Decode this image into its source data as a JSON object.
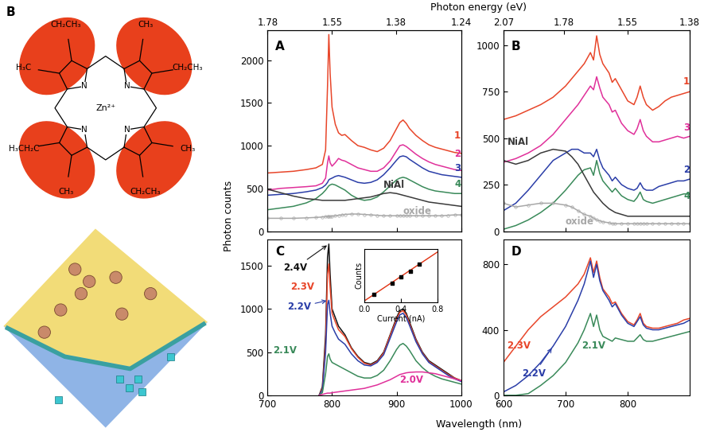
{
  "shared": {
    "xlabel": "Wavelength (nm)",
    "ylabel": "Photon counts",
    "x2label": "Photon energy (eV)"
  },
  "molecule": {
    "panel_label": "B",
    "metal": "Zn²⁺",
    "nitrogens": [
      "N",
      "N",
      "N",
      "N"
    ],
    "substituents": [
      "CH₂CH₃",
      "H₃C",
      "CH₂CH₃",
      "CH₃",
      "H₃CH₂C",
      "CH₃",
      "CH₂CH₃",
      "CH₃"
    ]
  },
  "chart_data": [
    {
      "type": "line",
      "title": "A",
      "x": [
        700,
        720,
        740,
        760,
        775,
        785,
        790,
        793,
        795,
        797,
        800,
        805,
        810,
        815,
        820,
        830,
        840,
        850,
        860,
        870,
        880,
        890,
        900,
        905,
        910,
        915,
        920,
        930,
        940,
        950,
        960,
        970,
        980,
        990,
        1000
      ],
      "xlim": [
        700,
        1000
      ],
      "xticks": [
        700,
        800,
        900,
        1000
      ],
      "x2ticks": [
        {
          "value": 700,
          "label": "1.78"
        },
        {
          "value": 800,
          "label": "1.55"
        },
        {
          "value": 899,
          "label": "1.38"
        },
        {
          "value": 1000,
          "label": "1.24"
        }
      ],
      "ylim": [
        0,
        2350
      ],
      "yticks": [
        0,
        500,
        1000,
        1500,
        2000
      ],
      "tick_labels": "y",
      "series": [
        {
          "name": "1",
          "color": "#e8462a",
          "values": [
            680,
            690,
            700,
            720,
            740,
            780,
            950,
            1700,
            2300,
            1850,
            1450,
            1250,
            1150,
            1120,
            1130,
            1060,
            1000,
            980,
            950,
            930,
            970,
            1060,
            1200,
            1270,
            1300,
            1260,
            1200,
            1120,
            1060,
            1010,
            980,
            960,
            940,
            920,
            910
          ]
        },
        {
          "name": "2",
          "color": "#e0309a",
          "values": [
            480,
            500,
            510,
            520,
            530,
            560,
            620,
            800,
            880,
            800,
            760,
            800,
            850,
            830,
            820,
            780,
            740,
            720,
            700,
            700,
            740,
            820,
            940,
            1000,
            1010,
            990,
            960,
            900,
            850,
            810,
            780,
            760,
            740,
            720,
            710
          ]
        },
        {
          "name": "3",
          "color": "#2b3ea8",
          "values": [
            420,
            430,
            440,
            460,
            480,
            510,
            540,
            570,
            600,
            610,
            620,
            640,
            650,
            640,
            630,
            600,
            570,
            560,
            570,
            600,
            660,
            740,
            830,
            870,
            880,
            870,
            840,
            790,
            740,
            700,
            680,
            660,
            650,
            640,
            630
          ]
        },
        {
          "name": "4",
          "color": "#3a8a5a",
          "values": [
            250,
            270,
            290,
            330,
            380,
            440,
            480,
            510,
            530,
            540,
            550,
            540,
            520,
            500,
            480,
            420,
            380,
            360,
            370,
            400,
            460,
            530,
            600,
            620,
            630,
            620,
            600,
            560,
            520,
            490,
            470,
            460,
            450,
            440,
            440
          ]
        },
        {
          "name": "NiAl",
          "color": "#3a3a3a",
          "values": [
            490,
            450,
            410,
            380,
            370,
            360,
            360,
            360,
            360,
            360,
            360,
            360,
            360,
            360,
            360,
            370,
            380,
            390,
            400,
            420,
            440,
            450,
            440,
            430,
            420,
            410,
            400,
            380,
            360,
            340,
            330,
            320,
            310,
            300,
            290
          ]
        },
        {
          "name": "oxide",
          "color": "#a8a8a8",
          "marker": "o",
          "values": [
            150,
            150,
            150,
            155,
            160,
            165,
            170,
            170,
            170,
            170,
            175,
            180,
            185,
            190,
            195,
            200,
            200,
            195,
            190,
            185,
            180,
            180,
            180,
            180,
            180,
            180,
            180,
            180,
            180,
            180,
            180,
            180,
            185,
            190,
            190
          ]
        }
      ]
    },
    {
      "type": "line",
      "title": "B",
      "x": [
        600,
        620,
        640,
        660,
        680,
        700,
        710,
        720,
        730,
        740,
        745,
        750,
        755,
        760,
        770,
        775,
        780,
        790,
        800,
        810,
        815,
        820,
        825,
        830,
        840,
        850,
        860,
        870,
        880,
        890,
        900
      ],
      "xlim": [
        600,
        900
      ],
      "xticks": [
        600,
        700,
        800
      ],
      "x2ticks": [
        {
          "value": 600,
          "label": "2.07"
        },
        {
          "value": 697,
          "label": "1.78"
        },
        {
          "value": 800,
          "label": "1.55"
        },
        {
          "value": 899,
          "label": "1.38"
        }
      ],
      "ylim": [
        0,
        1080
      ],
      "yticks": [
        0,
        250,
        500,
        750,
        1000
      ],
      "tick_labels": "y",
      "series": [
        {
          "name": "1",
          "color": "#e8462a",
          "values": [
            600,
            620,
            650,
            680,
            720,
            780,
            820,
            860,
            900,
            960,
            920,
            1050,
            950,
            900,
            850,
            800,
            820,
            760,
            700,
            680,
            720,
            780,
            720,
            680,
            650,
            670,
            700,
            720,
            730,
            740,
            750
          ]
        },
        {
          "name": "3",
          "color": "#e0309a",
          "values": [
            370,
            390,
            420,
            460,
            520,
            600,
            640,
            680,
            730,
            780,
            760,
            830,
            770,
            720,
            680,
            640,
            650,
            580,
            540,
            520,
            550,
            600,
            540,
            510,
            480,
            480,
            490,
            500,
            510,
            500,
            510
          ]
        },
        {
          "name": "2",
          "color": "#2b3ea8",
          "values": [
            110,
            150,
            220,
            300,
            380,
            420,
            440,
            440,
            420,
            420,
            400,
            440,
            380,
            340,
            300,
            270,
            290,
            250,
            230,
            220,
            230,
            260,
            230,
            220,
            220,
            240,
            250,
            260,
            270,
            270,
            280
          ]
        },
        {
          "name": "4",
          "color": "#3a8a5a",
          "values": [
            10,
            30,
            60,
            100,
            150,
            220,
            260,
            300,
            330,
            340,
            300,
            380,
            310,
            270,
            230,
            210,
            230,
            190,
            170,
            160,
            180,
            210,
            170,
            160,
            150,
            160,
            170,
            180,
            190,
            200,
            200
          ]
        },
        {
          "name": "NiAl",
          "color": "#3a3a3a",
          "values": [
            380,
            360,
            380,
            420,
            440,
            430,
            400,
            360,
            300,
            240,
            210,
            190,
            170,
            150,
            120,
            110,
            100,
            90,
            80,
            80,
            80,
            80,
            80,
            80,
            80,
            80,
            80,
            80,
            80,
            80,
            80
          ]
        },
        {
          "name": "oxide",
          "color": "#a8a8a8",
          "marker": "o",
          "values": [
            150,
            130,
            140,
            150,
            150,
            140,
            130,
            110,
            90,
            80,
            70,
            60,
            55,
            50,
            45,
            40,
            40,
            40,
            40,
            40,
            40,
            40,
            40,
            40,
            40,
            40,
            40,
            40,
            40,
            40,
            40
          ]
        }
      ]
    },
    {
      "type": "line",
      "title": "C",
      "x": [
        780,
        785,
        790,
        793,
        795,
        797,
        800,
        805,
        810,
        815,
        820,
        830,
        840,
        850,
        860,
        870,
        880,
        890,
        900,
        905,
        910,
        915,
        920,
        930,
        940,
        950,
        960,
        970,
        980,
        990,
        1000
      ],
      "xlim": [
        700,
        1000
      ],
      "xticks": [
        700,
        800,
        900,
        1000
      ],
      "ylim": [
        0,
        1800
      ],
      "yticks": [
        0,
        500,
        1000,
        1500
      ],
      "series": [
        {
          "name": "2.4V",
          "color": "#111111",
          "values": [
            0,
            100,
            700,
            1600,
            1750,
            1400,
            1000,
            900,
            800,
            750,
            700,
            550,
            450,
            380,
            360,
            400,
            500,
            700,
            900,
            980,
            1000,
            950,
            850,
            650,
            500,
            400,
            350,
            300,
            250,
            200,
            170
          ]
        },
        {
          "name": "2.3V",
          "color": "#e8462a",
          "values": [
            0,
            80,
            600,
            1400,
            1520,
            1250,
            950,
            850,
            760,
            720,
            680,
            540,
            440,
            370,
            350,
            390,
            490,
            690,
            880,
            960,
            980,
            930,
            830,
            640,
            490,
            390,
            340,
            290,
            240,
            200,
            170
          ]
        },
        {
          "name": "2.2V",
          "color": "#2b3ea8",
          "values": [
            0,
            60,
            500,
            1050,
            1100,
            950,
            800,
            720,
            650,
            620,
            590,
            480,
            400,
            350,
            340,
            380,
            470,
            660,
            850,
            930,
            950,
            900,
            810,
            620,
            480,
            380,
            330,
            280,
            230,
            190,
            160
          ]
        },
        {
          "name": "2.1V",
          "color": "#3a8a5a",
          "values": [
            0,
            30,
            250,
            450,
            480,
            420,
            380,
            360,
            340,
            320,
            300,
            260,
            220,
            200,
            200,
            230,
            290,
            400,
            530,
            580,
            600,
            570,
            520,
            400,
            320,
            260,
            220,
            190,
            170,
            150,
            130
          ]
        },
        {
          "name": "2.0V",
          "color": "#e0309a",
          "values": [
            0,
            10,
            20,
            25,
            25,
            25,
            30,
            35,
            40,
            45,
            50,
            60,
            70,
            80,
            100,
            120,
            150,
            180,
            220,
            240,
            250,
            260,
            265,
            270,
            270,
            260,
            250,
            230,
            210,
            190,
            170
          ]
        }
      ],
      "inset": {
        "type": "scatter",
        "xlabel": "Current (nA)",
        "ylabel": "Counts",
        "xlim": [
          0,
          0.8
        ],
        "ylim": [
          0,
          1
        ],
        "xticks": [
          {
            "value": 0,
            "label": "0.0"
          },
          0.4,
          0.8
        ],
        "tick_labels": "x",
        "series": [
          {
            "type": "scatter",
            "color": "#000000",
            "marker": "s",
            "x": [
              0.1,
              0.3,
              0.4,
              0.5,
              0.6
            ],
            "values": [
              0.14,
              0.35,
              0.47,
              0.58,
              0.71
            ]
          },
          {
            "type": "line",
            "color": "#e03010",
            "x": [
              0,
              0.8
            ],
            "values": [
              0.02,
              0.95
            ]
          }
        ]
      }
    },
    {
      "type": "line",
      "title": "D",
      "x": [
        600,
        620,
        640,
        660,
        680,
        700,
        710,
        720,
        730,
        740,
        745,
        750,
        755,
        760,
        770,
        775,
        780,
        790,
        800,
        810,
        815,
        820,
        825,
        830,
        840,
        850,
        860,
        870,
        880,
        890,
        900
      ],
      "xlim": [
        600,
        900
      ],
      "xticks": [
        600,
        700,
        800
      ],
      "ylim": [
        0,
        950
      ],
      "yticks": [
        0,
        400,
        800
      ],
      "series": [
        {
          "name": "2.3V",
          "color": "#e8462a",
          "values": [
            200,
            300,
            400,
            480,
            540,
            600,
            640,
            680,
            740,
            840,
            750,
            820,
            720,
            650,
            600,
            560,
            570,
            500,
            450,
            430,
            460,
            500,
            440,
            420,
            410,
            410,
            420,
            430,
            440,
            460,
            470
          ]
        },
        {
          "name": "2.2V",
          "color": "#2b3ea8",
          "values": [
            20,
            60,
            120,
            200,
            300,
            420,
            500,
            580,
            680,
            820,
            720,
            800,
            700,
            640,
            580,
            540,
            560,
            490,
            440,
            420,
            450,
            480,
            430,
            410,
            400,
            400,
            410,
            420,
            430,
            440,
            460
          ]
        },
        {
          "name": "2.1V",
          "color": "#3a8a5a",
          "values": [
            0,
            0,
            10,
            60,
            120,
            200,
            260,
            320,
            400,
            500,
            420,
            490,
            400,
            360,
            340,
            330,
            350,
            340,
            330,
            330,
            350,
            370,
            340,
            330,
            330,
            340,
            350,
            360,
            370,
            380,
            390
          ]
        }
      ]
    }
  ]
}
